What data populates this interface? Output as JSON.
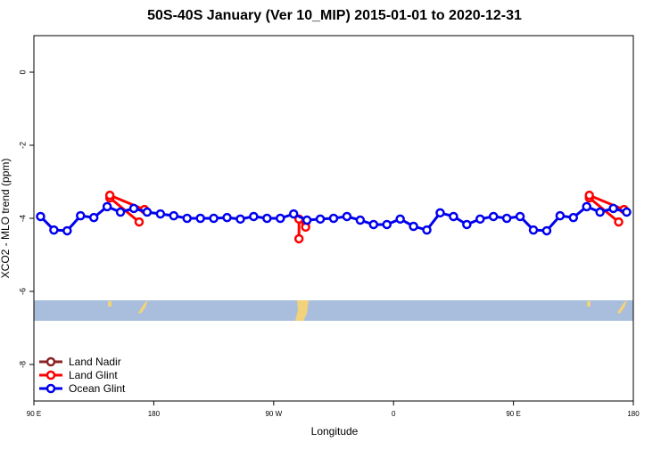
{
  "chart_data": {
    "type": "line",
    "title": "50S-40S January (Ver 10_MIP)   2015-01-01 to 2020-12-31",
    "x_label": "Longitude",
    "y_label": "XCO2 - MLO trend (ppm)",
    "xlim": [
      90,
      540
    ],
    "xticks": [
      {
        "value": 90,
        "label": "90 E"
      },
      180,
      {
        "value": 270,
        "label": "90 W"
      },
      {
        "value": 360,
        "label": "0"
      },
      {
        "value": 450,
        "label": "90 E"
      },
      {
        "value": 540,
        "label": "180"
      }
    ],
    "ylim": [
      -9,
      1
    ],
    "yticks": [
      0,
      -2,
      -4,
      -6,
      -8
    ],
    "legend": "bottom-left",
    "series": [
      {
        "name": "Land Nadir",
        "color": "#8b2323",
        "x": [],
        "values": []
      },
      {
        "name": "Land Glint",
        "color": "#ff0000",
        "x": [
          147,
          169,
          null,
          147,
          173,
          null,
          289,
          289,
          null,
          294,
          294,
          null,
          507,
          529,
          null,
          507,
          533
        ],
        "values": [
          -3.44,
          -4.1,
          null,
          -3.37,
          -3.76,
          null,
          -4.02,
          -4.56,
          null,
          -4.12,
          -4.24,
          null,
          -3.44,
          -4.1,
          null,
          -3.37,
          -3.76
        ]
      },
      {
        "name": "Ocean Glint",
        "color": "#0000ee",
        "x": [
          95,
          105,
          115,
          125,
          135,
          145,
          155,
          165,
          175,
          185,
          195,
          205,
          215,
          225,
          235,
          245,
          255,
          265,
          275,
          285,
          295,
          305,
          315,
          325,
          335,
          345,
          355,
          365,
          375,
          385,
          395,
          405,
          415,
          425,
          435,
          445,
          455,
          465,
          475,
          485,
          495,
          505,
          515,
          525,
          535
        ],
        "values": [
          -3.95,
          -4.32,
          -4.34,
          -3.93,
          -3.98,
          -3.68,
          -3.83,
          -3.73,
          -3.83,
          -3.88,
          -3.93,
          -4.0,
          -4.0,
          -4.0,
          -3.98,
          -4.02,
          -3.95,
          -4.0,
          -4.0,
          -3.88,
          -4.05,
          -4.02,
          -4.0,
          -3.95,
          -4.05,
          -4.17,
          -4.17,
          -4.02,
          -4.22,
          -4.32,
          -3.85,
          -3.95,
          -4.17,
          -4.02,
          -3.95,
          -4.0,
          -3.95,
          -4.32,
          -4.34,
          -3.93,
          -3.98,
          -3.68,
          -3.83,
          -3.73,
          -3.83
        ]
      }
    ]
  }
}
